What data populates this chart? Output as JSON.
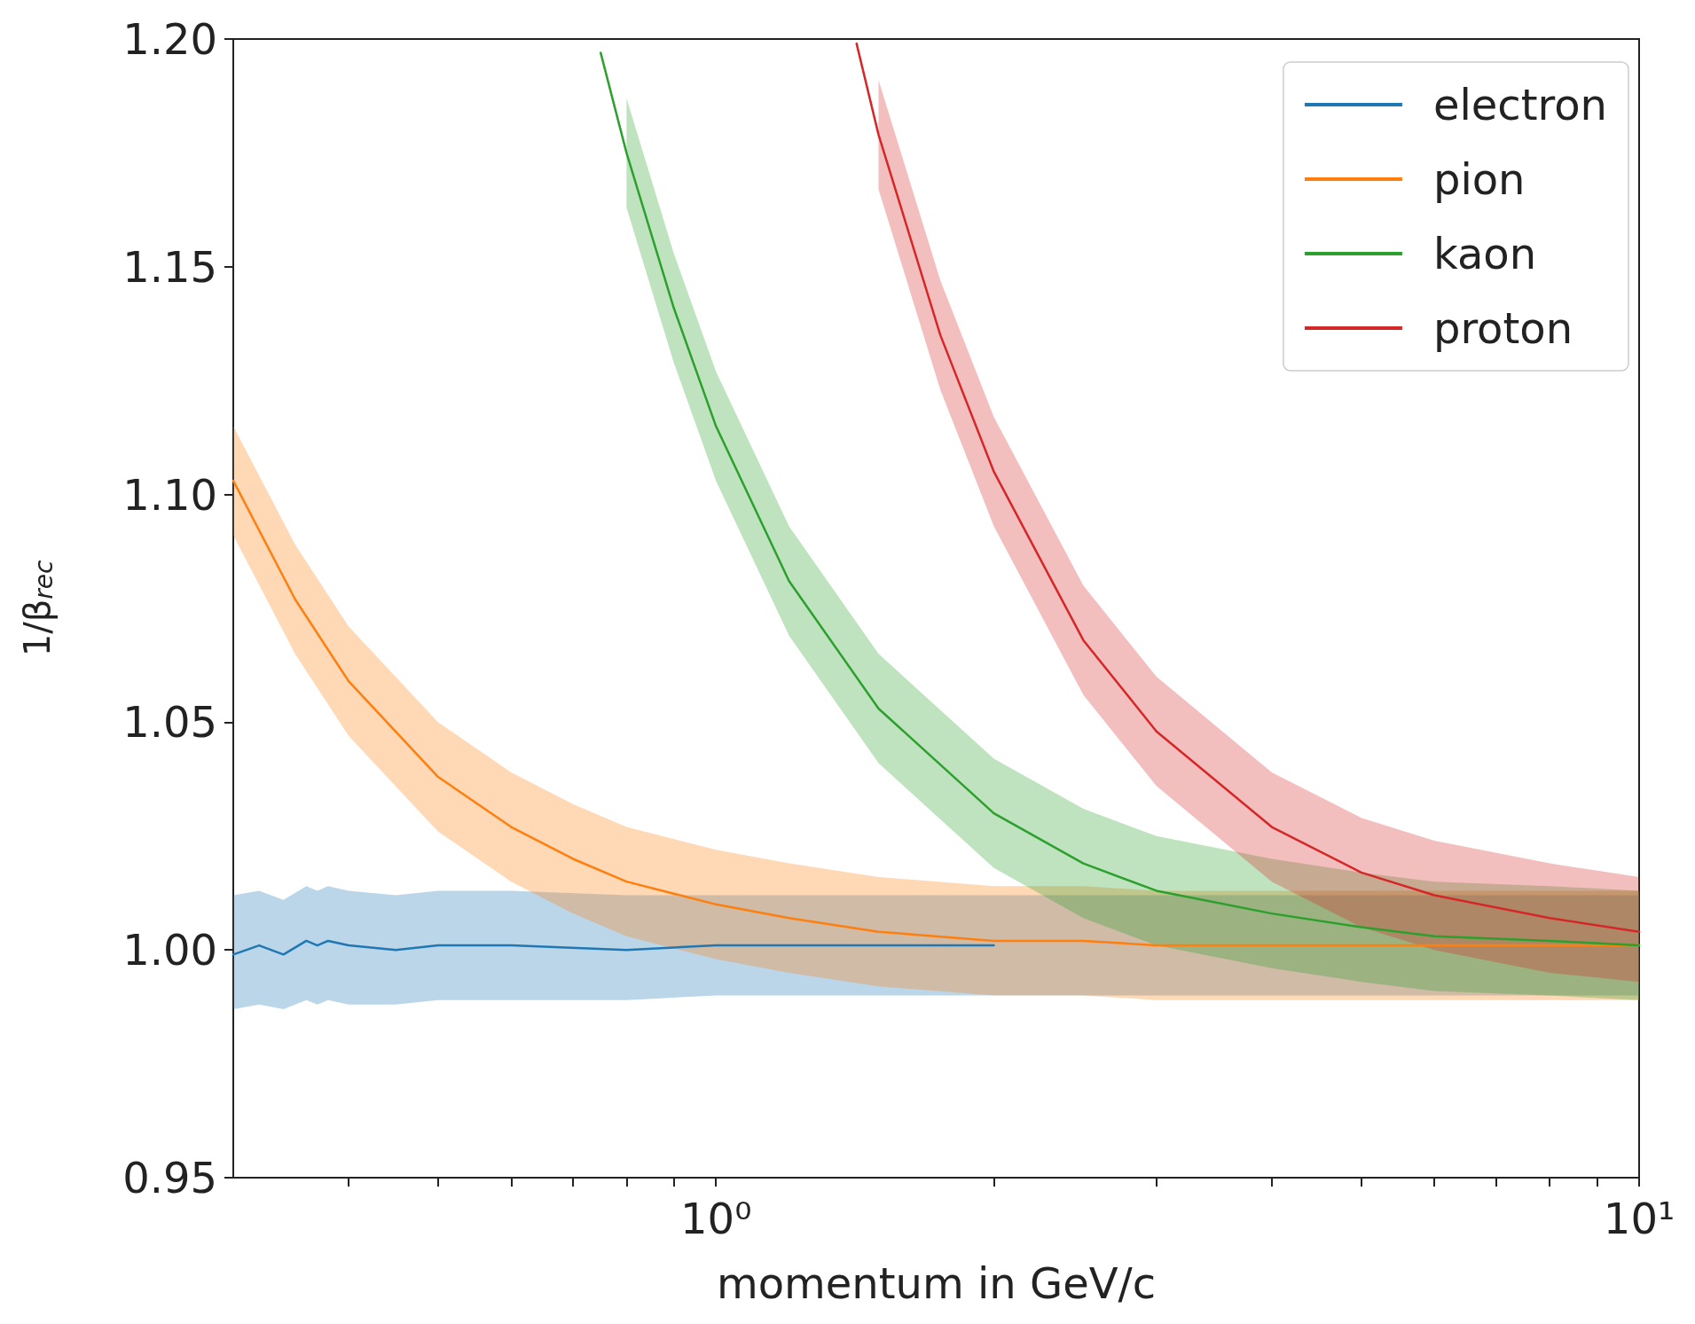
{
  "chart_data": {
    "type": "line",
    "xlabel": "momentum in GeV/c",
    "ylabel": "1/β$_{rec}$",
    "log": "x",
    "grid": false,
    "legend": "top right",
    "marker": "none",
    "line_style": "solid",
    "xlim": [
      0.3,
      10
    ],
    "xticks": [
      {
        "value": 0.4,
        "label": null
      },
      {
        "value": 0.5,
        "label": null
      },
      {
        "value": 0.6,
        "label": null
      },
      {
        "value": 0.7,
        "label": null
      },
      {
        "value": 0.8,
        "label": null
      },
      {
        "value": 0.9,
        "label": null
      },
      {
        "value": 1,
        "label": "10⁰"
      },
      {
        "value": 2,
        "label": null
      },
      {
        "value": 3,
        "label": null
      },
      {
        "value": 4,
        "label": null
      },
      {
        "value": 5,
        "label": null
      },
      {
        "value": 6,
        "label": null
      },
      {
        "value": 7,
        "label": null
      },
      {
        "value": 8,
        "label": null
      },
      {
        "value": 9,
        "label": null
      },
      {
        "value": 10,
        "label": "10¹"
      }
    ],
    "ylim": [
      0.95,
      1.2
    ],
    "yticks": [
      {
        "value": 0.95,
        "label": "0.95"
      },
      {
        "value": 1,
        "label": "1.00"
      },
      {
        "value": 1.05,
        "label": "1.05"
      },
      {
        "value": 1.1,
        "label": "1.10"
      },
      {
        "value": 1.15,
        "label": "1.15"
      },
      {
        "value": 1.2,
        "label": "1.20"
      }
    ],
    "series": [
      {
        "name": "electron",
        "color": "#1f77b4",
        "x": [
          0.3,
          0.32,
          0.34,
          0.36,
          0.37,
          0.38,
          0.4,
          0.45,
          0.5,
          0.6,
          0.8,
          1,
          1.5,
          2,
          3,
          5,
          10
        ],
        "values": [
          0.999,
          1.001,
          0.999,
          1.002,
          1.001,
          1.002,
          1.001,
          1.0,
          1.001,
          1.001,
          1.0,
          1.001,
          1.001,
          1.001,
          null,
          null,
          null
        ],
        "lower": [
          0.987,
          0.988,
          0.987,
          0.989,
          0.988,
          0.989,
          0.988,
          0.988,
          0.989,
          0.989,
          0.989,
          0.99,
          0.99,
          0.99,
          0.99,
          0.99,
          0.99
        ],
        "upper": [
          1.012,
          1.013,
          1.011,
          1.014,
          1.013,
          1.014,
          1.013,
          1.012,
          1.013,
          1.013,
          1.012,
          1.012,
          1.012,
          1.012,
          1.012,
          1.012,
          1.012
        ]
      },
      {
        "name": "pion",
        "color": "#ff7f0e",
        "x": [
          0.3,
          0.35,
          0.4,
          0.5,
          0.6,
          0.7,
          0.8,
          1,
          1.2,
          1.5,
          2,
          2.5,
          3,
          4,
          5,
          6,
          8,
          10
        ],
        "values": [
          1.103,
          1.077,
          1.059,
          1.038,
          1.027,
          1.02,
          1.015,
          1.01,
          1.007,
          1.004,
          1.002,
          1.002,
          1.001,
          1.001,
          1.001,
          1.001,
          1.001,
          1.001
        ],
        "lower": [
          1.091,
          1.065,
          1.047,
          1.026,
          1.015,
          1.008,
          1.003,
          0.998,
          0.995,
          0.992,
          0.99,
          0.99,
          0.989,
          0.989,
          0.989,
          0.989,
          0.989,
          0.989
        ],
        "upper": [
          1.115,
          1.089,
          1.071,
          1.05,
          1.039,
          1.032,
          1.027,
          1.022,
          1.019,
          1.016,
          1.014,
          1.014,
          1.013,
          1.013,
          1.013,
          1.013,
          1.013,
          1.013
        ]
      },
      {
        "name": "kaon",
        "color": "#2ca02c",
        "x": [
          0.75,
          0.8,
          0.9,
          1,
          1.2,
          1.5,
          2,
          2.5,
          3,
          4,
          5,
          6,
          8,
          10
        ],
        "values": [
          1.197,
          1.175,
          1.141,
          1.115,
          1.081,
          1.053,
          1.03,
          1.019,
          1.013,
          1.008,
          1.005,
          1.003,
          1.002,
          1.001
        ],
        "lower": [
          null,
          1.163,
          1.129,
          1.103,
          1.069,
          1.041,
          1.018,
          1.007,
          1.001,
          0.996,
          0.993,
          0.991,
          0.99,
          0.989
        ],
        "upper": [
          null,
          1.187,
          1.153,
          1.127,
          1.093,
          1.065,
          1.042,
          1.031,
          1.025,
          1.02,
          1.017,
          1.015,
          1.014,
          1.013
        ]
      },
      {
        "name": "proton",
        "color": "#d62728",
        "x": [
          1.42,
          1.5,
          1.75,
          2,
          2.5,
          3,
          4,
          5,
          6,
          8,
          10
        ],
        "values": [
          1.199,
          1.179,
          1.135,
          1.105,
          1.068,
          1.048,
          1.027,
          1.017,
          1.012,
          1.007,
          1.004
        ],
        "lower": [
          null,
          1.167,
          1.123,
          1.093,
          1.056,
          1.036,
          1.015,
          1.005,
          1.0,
          0.995,
          0.993
        ],
        "upper": [
          null,
          1.191,
          1.147,
          1.117,
          1.08,
          1.06,
          1.039,
          1.029,
          1.024,
          1.019,
          1.016
        ]
      }
    ]
  }
}
